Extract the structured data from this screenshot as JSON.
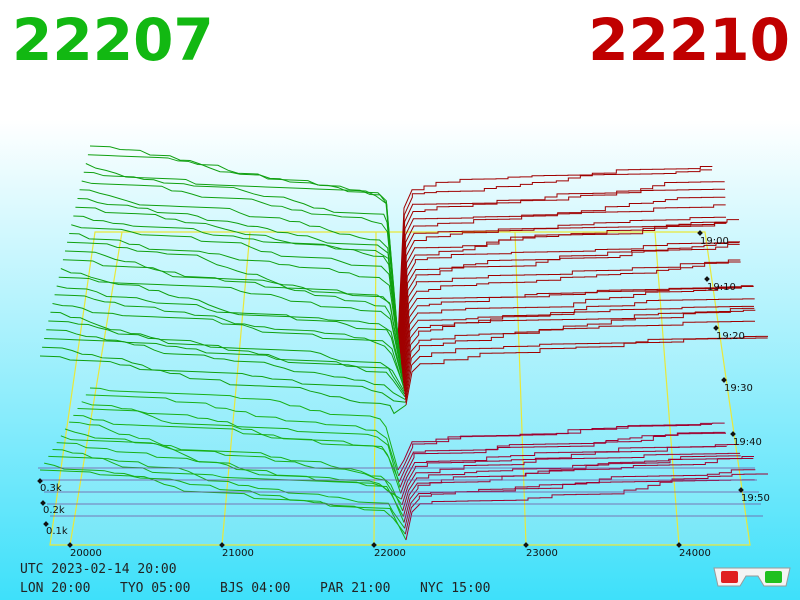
{
  "bid_price": "22207",
  "ask_price": "22210",
  "price_axis": [
    "20000",
    "21000",
    "22000",
    "23000",
    "24000"
  ],
  "time_axis": [
    "19:00",
    "19:10",
    "19:20",
    "19:30",
    "19:40",
    "19:50"
  ],
  "volume_axis": [
    "0.3k",
    "0.2k",
    "0.1k"
  ],
  "clock": {
    "utc": "UTC 2023-02-14 20:00",
    "zones": [
      "LON 20:00",
      "TYO 05:00",
      "BJS 04:00",
      "PAR 21:00",
      "NYC 15:00"
    ]
  }
}
